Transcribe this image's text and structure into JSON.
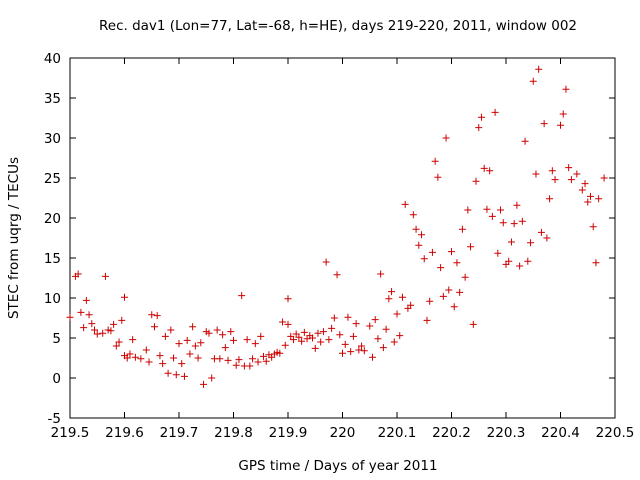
{
  "chart_data": {
    "type": "scatter",
    "title": "Rec. dav1 (Lon=77, Lat=-68, h=HE), days 219-220, 2011, window 002",
    "xlabel": "GPS time / Days of year 2011",
    "ylabel": "STEC from uqrg / TECUs",
    "xlim": [
      219.5,
      220.5
    ],
    "ylim": [
      -5,
      40
    ],
    "xticks": [
      "219.5",
      "219.6",
      "219.7",
      "219.8",
      "219.9",
      "220",
      "220.1",
      "220.2",
      "220.3",
      "220.4",
      "220.5"
    ],
    "yticks": [
      "-5",
      "0",
      "5",
      "10",
      "15",
      "20",
      "25",
      "30",
      "35",
      "40"
    ],
    "marker": "+",
    "color": "#cc0000",
    "series": [
      {
        "name": "STEC",
        "points": [
          [
            219.5,
            7.6
          ],
          [
            219.51,
            12.7
          ],
          [
            219.515,
            13.0
          ],
          [
            219.52,
            8.2
          ],
          [
            219.525,
            6.3
          ],
          [
            219.53,
            9.7
          ],
          [
            219.535,
            7.9
          ],
          [
            219.54,
            6.8
          ],
          [
            219.545,
            6.0
          ],
          [
            219.55,
            5.5
          ],
          [
            219.56,
            5.6
          ],
          [
            219.565,
            12.7
          ],
          [
            219.57,
            6.0
          ],
          [
            219.575,
            5.9
          ],
          [
            219.58,
            6.7
          ],
          [
            219.585,
            4.0
          ],
          [
            219.59,
            4.5
          ],
          [
            219.595,
            7.2
          ],
          [
            219.6,
            10.1
          ],
          [
            219.6,
            2.8
          ],
          [
            219.605,
            2.5
          ],
          [
            219.61,
            3.0
          ],
          [
            219.615,
            4.8
          ],
          [
            219.62,
            2.6
          ],
          [
            219.63,
            2.4
          ],
          [
            219.64,
            3.5
          ],
          [
            219.645,
            2.0
          ],
          [
            219.65,
            7.9
          ],
          [
            219.655,
            6.4
          ],
          [
            219.66,
            7.8
          ],
          [
            219.665,
            2.8
          ],
          [
            219.67,
            1.8
          ],
          [
            219.675,
            5.2
          ],
          [
            219.68,
            0.6
          ],
          [
            219.685,
            6.0
          ],
          [
            219.69,
            2.5
          ],
          [
            219.695,
            0.4
          ],
          [
            219.7,
            4.3
          ],
          [
            219.705,
            1.8
          ],
          [
            219.71,
            0.2
          ],
          [
            219.715,
            4.7
          ],
          [
            219.72,
            3.0
          ],
          [
            219.725,
            6.4
          ],
          [
            219.73,
            4.0
          ],
          [
            219.735,
            2.5
          ],
          [
            219.74,
            4.4
          ],
          [
            219.745,
            -0.8
          ],
          [
            219.75,
            5.8
          ],
          [
            219.755,
            5.6
          ],
          [
            219.76,
            0.0
          ],
          [
            219.765,
            2.4
          ],
          [
            219.77,
            6.0
          ],
          [
            219.775,
            2.4
          ],
          [
            219.78,
            5.4
          ],
          [
            219.785,
            3.8
          ],
          [
            219.79,
            2.2
          ],
          [
            219.795,
            5.8
          ],
          [
            219.8,
            4.7
          ],
          [
            219.805,
            1.6
          ],
          [
            219.81,
            2.3
          ],
          [
            219.815,
            10.3
          ],
          [
            219.82,
            1.5
          ],
          [
            219.825,
            4.8
          ],
          [
            219.83,
            1.5
          ],
          [
            219.835,
            2.4
          ],
          [
            219.84,
            4.3
          ],
          [
            219.845,
            2.0
          ],
          [
            219.85,
            5.2
          ],
          [
            219.855,
            2.7
          ],
          [
            219.86,
            2.1
          ],
          [
            219.865,
            2.9
          ],
          [
            219.87,
            2.6
          ],
          [
            219.875,
            3.0
          ],
          [
            219.88,
            3.2
          ],
          [
            219.885,
            3.1
          ],
          [
            219.89,
            7.0
          ],
          [
            219.895,
            4.1
          ],
          [
            219.9,
            9.9
          ],
          [
            219.9,
            6.7
          ],
          [
            219.905,
            5.2
          ],
          [
            219.91,
            4.8
          ],
          [
            219.915,
            5.5
          ],
          [
            219.92,
            5.1
          ],
          [
            219.925,
            4.6
          ],
          [
            219.93,
            5.7
          ],
          [
            219.935,
            4.9
          ],
          [
            219.94,
            5.3
          ],
          [
            219.945,
            5.0
          ],
          [
            219.95,
            3.7
          ],
          [
            219.955,
            5.6
          ],
          [
            219.96,
            4.5
          ],
          [
            219.965,
            5.8
          ],
          [
            219.97,
            14.5
          ],
          [
            219.975,
            4.8
          ],
          [
            219.98,
            6.2
          ],
          [
            219.985,
            7.5
          ],
          [
            219.99,
            12.9
          ],
          [
            219.995,
            5.4
          ],
          [
            220.0,
            3.1
          ],
          [
            220.005,
            4.2
          ],
          [
            220.01,
            7.6
          ],
          [
            220.015,
            3.3
          ],
          [
            220.02,
            5.2
          ],
          [
            220.025,
            6.8
          ],
          [
            220.03,
            3.5
          ],
          [
            220.035,
            4.0
          ],
          [
            220.04,
            3.4
          ],
          [
            220.05,
            6.5
          ],
          [
            220.055,
            2.6
          ],
          [
            220.06,
            7.3
          ],
          [
            220.065,
            4.9
          ],
          [
            220.07,
            13.0
          ],
          [
            220.075,
            3.8
          ],
          [
            220.08,
            6.1
          ],
          [
            220.085,
            9.9
          ],
          [
            220.09,
            10.8
          ],
          [
            220.095,
            4.5
          ],
          [
            220.1,
            8.0
          ],
          [
            220.105,
            5.3
          ],
          [
            220.11,
            10.1
          ],
          [
            220.115,
            21.7
          ],
          [
            220.12,
            8.7
          ],
          [
            220.125,
            9.1
          ],
          [
            220.13,
            20.4
          ],
          [
            220.135,
            18.6
          ],
          [
            220.14,
            16.6
          ],
          [
            220.145,
            17.9
          ],
          [
            220.15,
            14.9
          ],
          [
            220.155,
            7.2
          ],
          [
            220.16,
            9.6
          ],
          [
            220.165,
            15.7
          ],
          [
            220.17,
            27.1
          ],
          [
            220.175,
            25.1
          ],
          [
            220.18,
            13.8
          ],
          [
            220.185,
            10.2
          ],
          [
            220.19,
            30.0
          ],
          [
            220.195,
            11.0
          ],
          [
            220.2,
            15.8
          ],
          [
            220.205,
            8.9
          ],
          [
            220.21,
            14.4
          ],
          [
            220.215,
            10.7
          ],
          [
            220.22,
            18.6
          ],
          [
            220.225,
            12.6
          ],
          [
            220.23,
            21.0
          ],
          [
            220.235,
            16.4
          ],
          [
            220.24,
            6.7
          ],
          [
            220.245,
            24.6
          ],
          [
            220.25,
            31.3
          ],
          [
            220.255,
            32.6
          ],
          [
            220.26,
            26.2
          ],
          [
            220.265,
            21.1
          ],
          [
            220.27,
            25.9
          ],
          [
            220.275,
            20.2
          ],
          [
            220.28,
            33.2
          ],
          [
            220.285,
            15.6
          ],
          [
            220.29,
            21.0
          ],
          [
            220.295,
            19.4
          ],
          [
            220.3,
            14.2
          ],
          [
            220.305,
            14.6
          ],
          [
            220.31,
            17.0
          ],
          [
            220.315,
            19.3
          ],
          [
            220.32,
            21.6
          ],
          [
            220.325,
            14.0
          ],
          [
            220.33,
            19.6
          ],
          [
            220.335,
            29.6
          ],
          [
            220.34,
            14.6
          ],
          [
            220.345,
            16.9
          ],
          [
            220.35,
            37.1
          ],
          [
            220.355,
            25.5
          ],
          [
            220.36,
            38.6
          ],
          [
            220.365,
            18.2
          ],
          [
            220.37,
            31.8
          ],
          [
            220.375,
            17.5
          ],
          [
            220.38,
            22.4
          ],
          [
            220.385,
            25.9
          ],
          [
            220.39,
            24.8
          ],
          [
            220.4,
            31.6
          ],
          [
            220.405,
            33.0
          ],
          [
            220.41,
            36.1
          ],
          [
            220.415,
            26.3
          ],
          [
            220.42,
            24.8
          ],
          [
            220.43,
            25.5
          ],
          [
            220.44,
            23.5
          ],
          [
            220.445,
            24.3
          ],
          [
            220.45,
            22.0
          ],
          [
            220.455,
            22.7
          ],
          [
            220.46,
            18.9
          ],
          [
            220.465,
            14.4
          ],
          [
            220.47,
            22.4
          ],
          [
            220.48,
            25.0
          ]
        ]
      }
    ]
  }
}
